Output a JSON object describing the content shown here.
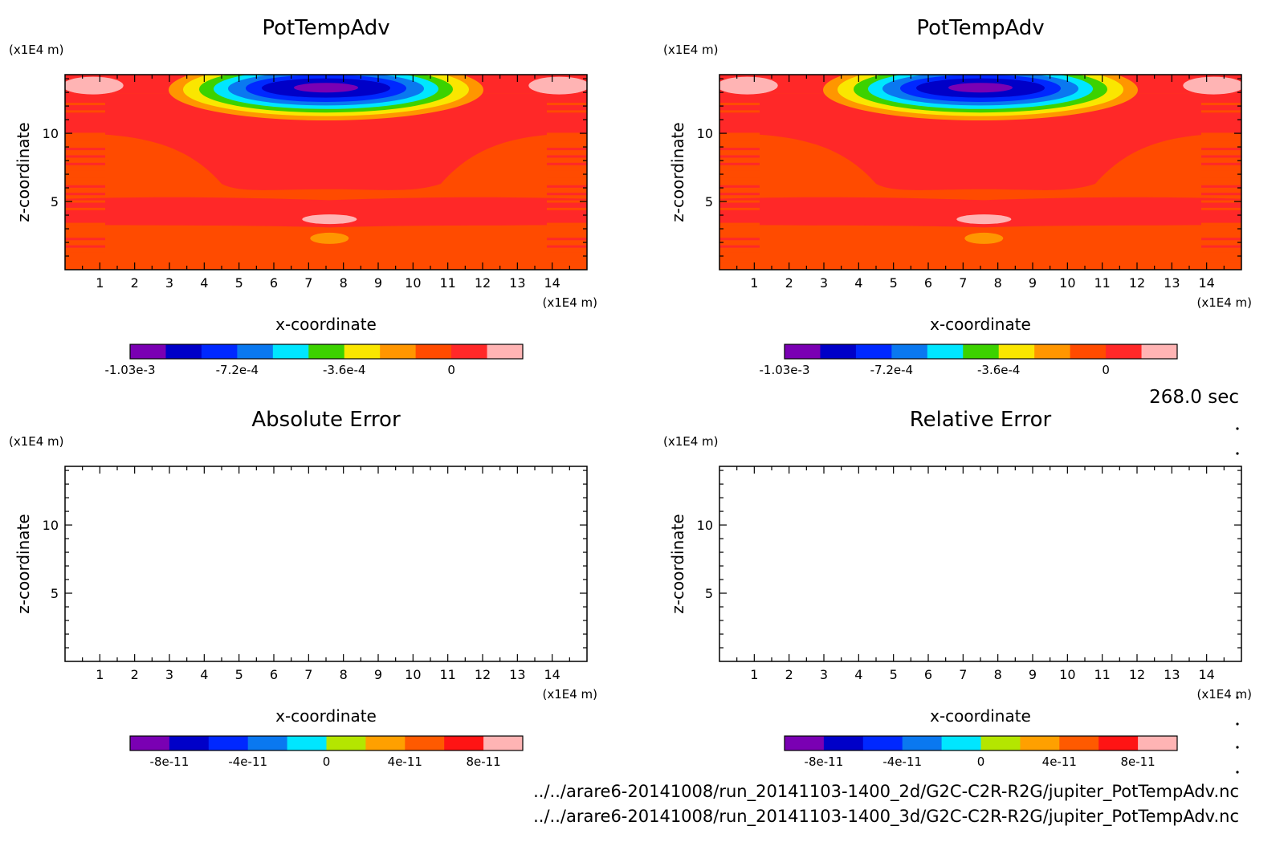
{
  "figure": {
    "time_label": "268.0 sec",
    "file_paths": [
      "../../arare6-20141008/run_20141103-1400_2d/G2C-C2R-R2G/jupiter_PotTempAdv.nc",
      "../../arare6-20141008/run_20141103-1400_3d/G2C-C2R-R2G/jupiter_PotTempAdv.nc"
    ]
  },
  "colors": {
    "field_levels": [
      "#7a00b3",
      "#0000c8",
      "#0028ff",
      "#0a78f0",
      "#00e6ff",
      "#3cd200",
      "#fae600",
      "#ff9600",
      "#ff4b00",
      "#ff2828",
      "#ffb4b4"
    ],
    "error_levels": [
      "#7a00b3",
      "#0000c8",
      "#0028ff",
      "#0a78f0",
      "#00e6ff",
      "#b4e600",
      "#ffa000",
      "#ff5a00",
      "#ff1414",
      "#ffb4b4"
    ]
  },
  "chart_data": [
    {
      "type": "heatmap",
      "title": "PotTempAdv",
      "xlabel": "x-coordinate",
      "ylabel": "z-coordinate",
      "x_unit": "(x1E4 m)",
      "y_unit": "(x1E4 m)",
      "xlim": [
        0,
        15
      ],
      "ylim": [
        0,
        14.3
      ],
      "x_ticks": [
        "1",
        "2",
        "3",
        "4",
        "5",
        "6",
        "7",
        "8",
        "9",
        "10",
        "11",
        "12",
        "13",
        "14"
      ],
      "y_ticks": [
        "5",
        "10"
      ],
      "colorbar": {
        "labels": [
          "-1.03e-3",
          "-7.2e-4",
          "-3.6e-4",
          "0"
        ],
        "values": [
          -0.00103,
          -0.00072,
          -0.00036,
          0
        ]
      },
      "field": {
        "min_value": -0.00103,
        "min_location": {
          "x": 7.5,
          "z": 13.5
        },
        "positive_lobes": [
          {
            "x": 0.8,
            "z": 13.5
          },
          {
            "x": 14.2,
            "z": 13.5
          },
          {
            "x": 7.6,
            "z": 3.7
          }
        ],
        "negative_lobe": {
          "x": 7.6,
          "z": 2.3
        }
      }
    },
    {
      "type": "heatmap",
      "title": "PotTempAdv",
      "xlabel": "x-coordinate",
      "ylabel": "z-coordinate",
      "x_unit": "(x1E4 m)",
      "y_unit": "(x1E4 m)",
      "xlim": [
        0,
        15
      ],
      "ylim": [
        0,
        14.3
      ],
      "x_ticks": [
        "1",
        "2",
        "3",
        "4",
        "5",
        "6",
        "7",
        "8",
        "9",
        "10",
        "11",
        "12",
        "13",
        "14"
      ],
      "y_ticks": [
        "5",
        "10"
      ],
      "colorbar": {
        "labels": [
          "-1.03e-3",
          "-7.2e-4",
          "-3.6e-4",
          "0"
        ],
        "values": [
          -0.00103,
          -0.00072,
          -0.00036,
          0
        ]
      },
      "field": {
        "min_value": -0.00103,
        "min_location": {
          "x": 7.5,
          "z": 13.5
        },
        "positive_lobes": [
          {
            "x": 0.8,
            "z": 13.5
          },
          {
            "x": 14.2,
            "z": 13.5
          },
          {
            "x": 7.6,
            "z": 3.7
          }
        ],
        "negative_lobe": {
          "x": 7.6,
          "z": 2.3
        }
      }
    },
    {
      "type": "heatmap",
      "title": "Absolute Error",
      "xlabel": "x-coordinate",
      "ylabel": "z-coordinate",
      "x_unit": "(x1E4 m)",
      "y_unit": "(x1E4 m)",
      "xlim": [
        0,
        15
      ],
      "ylim": [
        0,
        14.3
      ],
      "x_ticks": [
        "1",
        "2",
        "3",
        "4",
        "5",
        "6",
        "7",
        "8",
        "9",
        "10",
        "11",
        "12",
        "13",
        "14"
      ],
      "y_ticks": [
        "5",
        "10"
      ],
      "colorbar": {
        "labels": [
          "-8e-11",
          "-4e-11",
          "0",
          "4e-11",
          "8e-11"
        ],
        "values": [
          -8e-11,
          -4e-11,
          0,
          4e-11,
          8e-11
        ]
      },
      "field": null
    },
    {
      "type": "heatmap",
      "title": "Relative Error",
      "xlabel": "x-coordinate",
      "ylabel": "z-coordinate",
      "x_unit": "(x1E4 m)",
      "y_unit": "(x1E4 m)",
      "xlim": [
        0,
        15
      ],
      "ylim": [
        0,
        14.3
      ],
      "x_ticks": [
        "1",
        "2",
        "3",
        "4",
        "5",
        "6",
        "7",
        "8",
        "9",
        "10",
        "11",
        "12",
        "13",
        "14"
      ],
      "y_ticks": [
        "5",
        "10"
      ],
      "colorbar": {
        "labels": [
          "-8e-11",
          "-4e-11",
          "0",
          "4e-11",
          "8e-11"
        ],
        "values": [
          -8e-11,
          -4e-11,
          0,
          4e-11,
          8e-11
        ]
      },
      "field": null
    }
  ]
}
